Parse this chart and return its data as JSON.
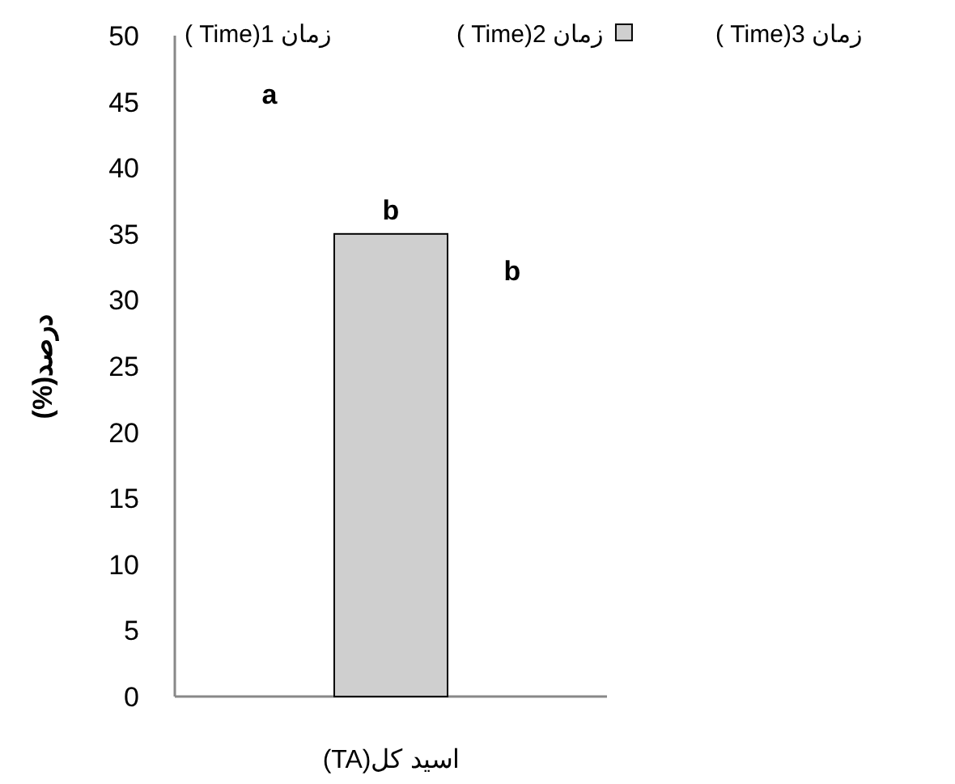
{
  "chart_data": {
    "type": "bar",
    "categories": [
      "اسید کل(TA)"
    ],
    "ylabel": "درصد(%)",
    "series": [
      {
        "name": "زمان 1(Time )",
        "values": [
          null
        ]
      },
      {
        "name": "زمان 2(Time )",
        "color": "#cfcfcf",
        "values": [
          35
        ],
        "value_labels": [
          "b"
        ]
      },
      {
        "name": "زمان 3(Time )",
        "values": [
          null
        ]
      }
    ],
    "annotations": [
      "a",
      "b"
    ],
    "ylim": [
      0,
      50
    ],
    "yticks": [
      0,
      5,
      10,
      15,
      20,
      25,
      30,
      35,
      40,
      45,
      50
    ],
    "grid": false,
    "legend": "top"
  }
}
